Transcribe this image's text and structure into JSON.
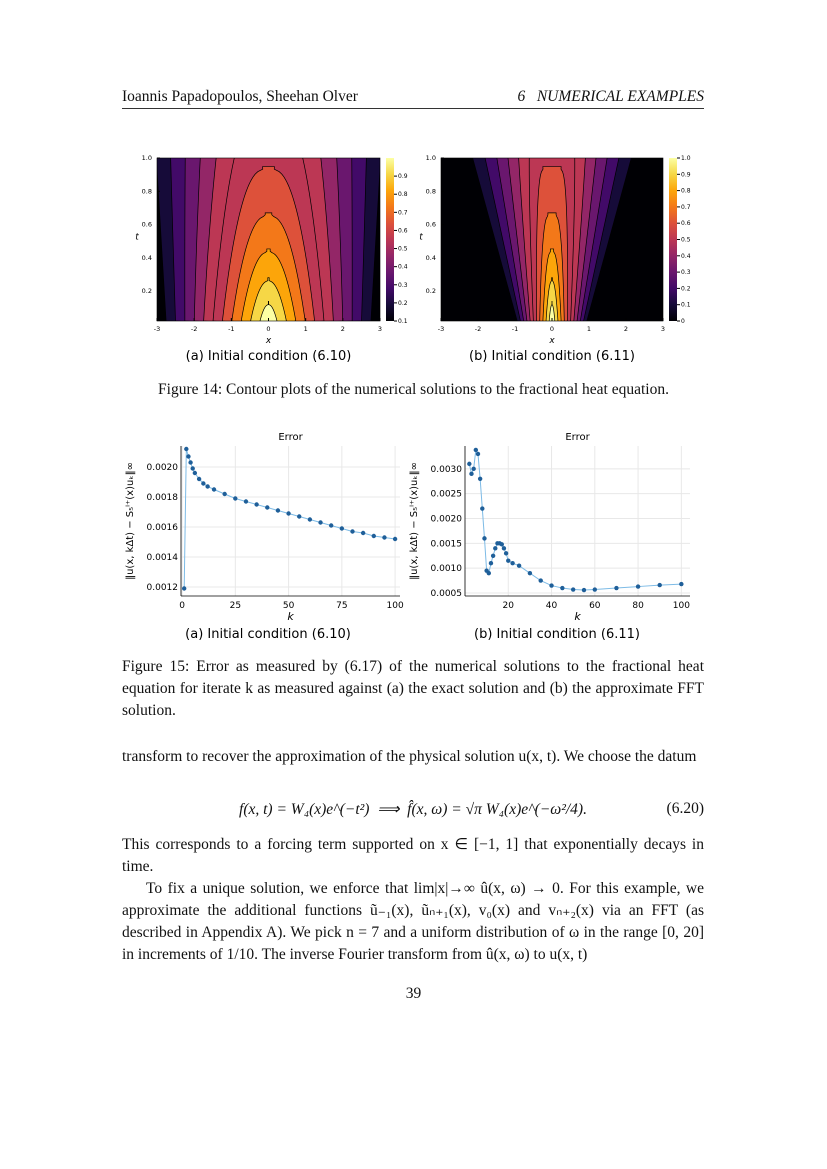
{
  "header": {
    "authors": "Ioannis Papadopoulos, Sheehan Olver",
    "section": "6   NUMERICAL EXAMPLES"
  },
  "figure14": {
    "plots": [
      {
        "type": "contour",
        "xlabel": "x",
        "ylabel": "t",
        "xlim": [
          -3,
          3
        ],
        "ylim": [
          0.02,
          1
        ],
        "xticks": [
          -3,
          -2,
          -1,
          0,
          1,
          2,
          3
        ],
        "yticks": [
          0.2,
          0.4,
          0.6,
          0.8,
          {
            "value": 1,
            "label": "1.0"
          }
        ],
        "clim": [
          0.1,
          1
        ],
        "cticks": [
          0.1,
          0.2,
          0.3,
          0.4,
          0.5,
          0.6,
          0.7,
          0.8,
          0.9
        ],
        "caption": "(a) Initial condition (6.10)"
      },
      {
        "type": "contour",
        "xlabel": "x",
        "ylabel": "t",
        "xlim": [
          -3,
          3
        ],
        "ylim": [
          0.02,
          1
        ],
        "xticks": [
          -3,
          -2,
          -1,
          0,
          1,
          2,
          3
        ],
        "yticks": [
          0.2,
          0.4,
          0.6,
          0.8,
          {
            "value": 1,
            "label": "1.0"
          }
        ],
        "clim": [
          0,
          1
        ],
        "cticks": [
          0,
          0.1,
          0.2,
          0.3,
          0.4,
          0.5,
          0.6,
          0.7,
          0.8,
          0.9,
          {
            "value": 1,
            "label": "1.0"
          }
        ],
        "caption": "(b) Initial condition (6.11)"
      }
    ],
    "caption": "Figure 14: Contour plots of the numerical solutions to the fractional heat equation."
  },
  "figure15": {
    "plots": [
      {
        "type": "scatter",
        "title": "Error",
        "xlabel": "k",
        "ylabel": "‖u(x, kΔt) − S₅ᴵ⁺(x)uₖ‖∞",
        "xlim": [
          -0.5,
          102.3
        ],
        "ylim": [
          0.00114,
          0.00214
        ],
        "xticks": [
          0,
          25,
          50,
          75,
          100
        ],
        "yticks": [
          0.0012,
          0.0014,
          0.0016,
          0.0018,
          {
            "value": 0.002,
            "label": "0.0020"
          }
        ],
        "series": [
          {
            "color": "#1f5f99",
            "line_color": "#7dbbe6",
            "x": [
              1,
              2,
              3,
              4,
              5,
              6,
              8,
              10,
              12,
              15,
              20,
              25,
              30,
              35,
              40,
              45,
              50,
              55,
              60,
              65,
              70,
              75,
              80,
              85,
              90,
              95,
              100
            ],
            "values": [
              0.00119,
              0.00212,
              0.00207,
              0.00203,
              0.00199,
              0.00196,
              0.00192,
              0.00189,
              0.00187,
              0.00185,
              0.00182,
              0.00179,
              0.00177,
              0.00175,
              0.00173,
              0.00171,
              0.00169,
              0.00167,
              0.00165,
              0.00163,
              0.00161,
              0.00159,
              0.00157,
              0.00156,
              0.00154,
              0.00153,
              0.00152
            ]
          }
        ],
        "caption": "(a) Initial condition (6.10)"
      },
      {
        "type": "scatter",
        "title": "Error",
        "xlabel": "k",
        "ylabel": "‖u(x, kΔt) − S₅ᴵ⁺(x)uₖ‖∞",
        "xlim": [
          0,
          104
        ],
        "ylim": [
          0.00044,
          0.00346
        ],
        "xticks": [
          20,
          40,
          60,
          80,
          100
        ],
        "yticks": [
          0.0005,
          {
            "value": 0.001,
            "label": "0.0010"
          },
          0.0015,
          {
            "value": 0.002,
            "label": "0.0020"
          },
          0.0025,
          {
            "value": 0.003,
            "label": "0.0030"
          }
        ],
        "series": [
          {
            "color": "#1f5f99",
            "line_color": "#7dbbe6",
            "x": [
              2,
              3,
              4,
              5,
              6,
              7,
              8,
              9,
              10,
              11,
              12,
              13,
              14,
              15,
              16,
              17,
              18,
              19,
              20,
              22,
              25,
              30,
              35,
              40,
              45,
              50,
              55,
              60,
              70,
              80,
              90,
              100
            ],
            "values": [
              0.0031,
              0.0029,
              0.003,
              0.00338,
              0.0033,
              0.0028,
              0.0022,
              0.0016,
              0.00095,
              0.0009,
              0.0011,
              0.00125,
              0.0014,
              0.0015,
              0.0015,
              0.00148,
              0.0014,
              0.0013,
              0.00115,
              0.0011,
              0.00105,
              0.0009,
              0.00075,
              0.00065,
              0.0006,
              0.00057,
              0.00056,
              0.00057,
              0.0006,
              0.00063,
              0.00066,
              0.00068
            ]
          }
        ],
        "caption": "(b) Initial condition (6.11)"
      }
    ],
    "caption": "Figure 15: Error as measured by (6.17) of the numerical solutions to the fractional heat equation for iterate k as measured against (a) the exact solution and (b) the approximate FFT solution."
  },
  "body": {
    "paragraph_1": "transform to recover the approximation of the physical solution u(x, t). We choose the datum",
    "equation": "f(x, t) = W₄(x)e^(−t²)  ⟹  f̂(x, ω) = √π W₄(x)e^(−ω²/4).",
    "equation_number": "(6.20)",
    "paragraph_2": "This corresponds to a forcing term supported on x ∈ [−1, 1] that exponentially decays in time.",
    "paragraph_3": "To fix a unique solution, we enforce that lim|x|→∞ û(x, ω) → 0. For this example, we approximate the additional functions ũ₋₁(x), ũₙ₊₁(x), v₀(x) and vₙ₊₂(x) via an FFT (as described in Appendix A). We pick n = 7 and a uniform distribution of ω in the range [0, 20] in increments of 1/10. The inverse Fourier transform from û(x, ω) to u(x, t)"
  },
  "page_number": "39"
}
